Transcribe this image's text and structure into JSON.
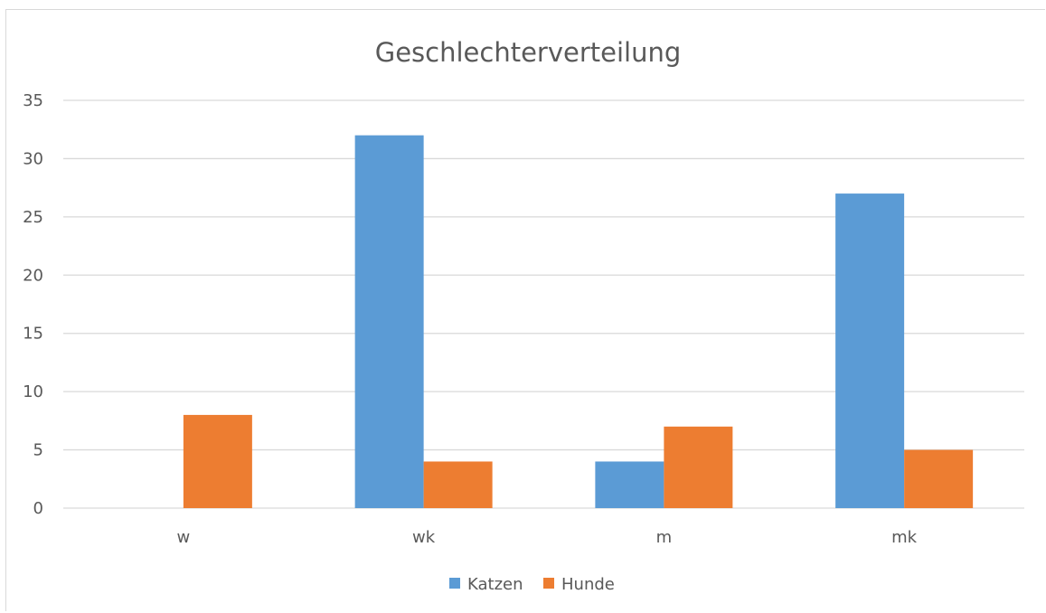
{
  "chart_data": {
    "type": "bar",
    "title": "Geschlechterverteilung",
    "xlabel": "",
    "ylabel": "",
    "categories": [
      "w",
      "wk",
      "m",
      "mk"
    ],
    "series": [
      {
        "name": "Katzen",
        "values": [
          0,
          32,
          4,
          27
        ],
        "color": "#5B9BD5"
      },
      {
        "name": "Hunde",
        "values": [
          8,
          4,
          7,
          5
        ],
        "color": "#ED7D31"
      }
    ],
    "ylim": [
      0,
      35
    ],
    "yticks": [
      "0",
      "5",
      "10",
      "15",
      "20",
      "25",
      "30",
      "35"
    ],
    "grid": true,
    "legend_position": "bottom"
  }
}
